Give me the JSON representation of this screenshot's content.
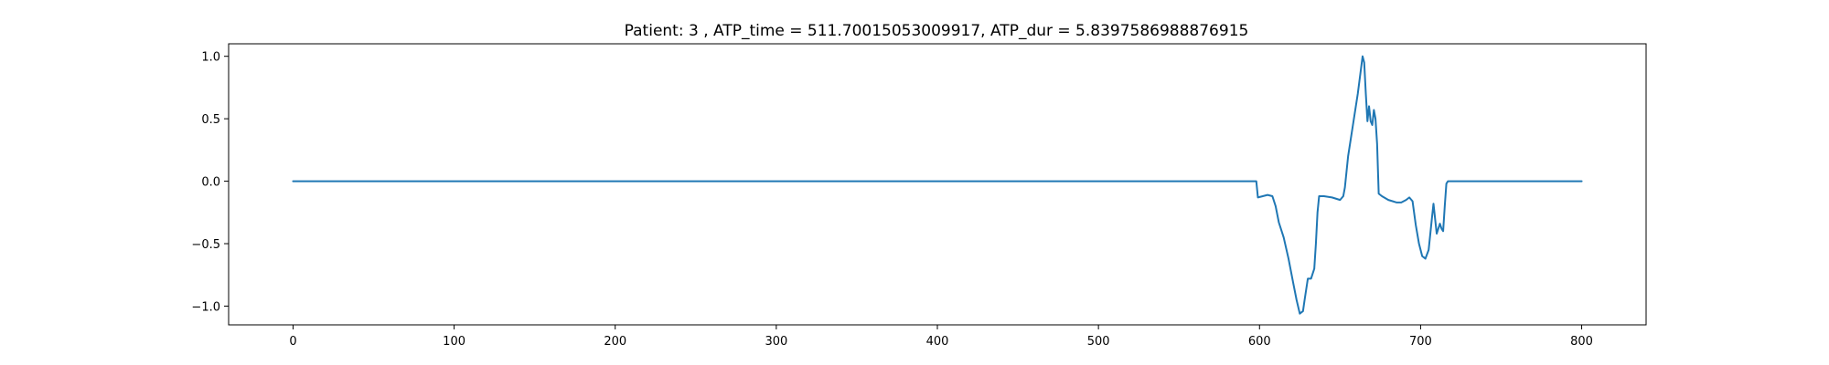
{
  "chart_data": {
    "type": "line",
    "title": "Patient: 3 , ATP_time = 511.70015053009917, ATP_dur = 5.8397586988876915",
    "xlabel": "",
    "ylabel": "",
    "xlim": [
      -40,
      840
    ],
    "ylim": [
      -1.15,
      1.1
    ],
    "xticks": [
      0,
      100,
      200,
      300,
      400,
      500,
      600,
      700,
      800
    ],
    "yticks": [
      1.0,
      0.5,
      0.0,
      -0.5,
      -1.0
    ],
    "xtick_labels": [
      "0",
      "100",
      "200",
      "300",
      "400",
      "500",
      "600",
      "700",
      "800"
    ],
    "ytick_labels": [
      "1.0",
      "0.5",
      "0.0",
      "−0.5",
      "−1.0"
    ],
    "grid": false,
    "legend": "none",
    "series": [
      {
        "color": "#1f77b4",
        "points": [
          [
            0,
            0.0
          ],
          [
            598,
            0.0
          ],
          [
            599,
            -0.13
          ],
          [
            602,
            -0.12
          ],
          [
            605,
            -0.11
          ],
          [
            608,
            -0.12
          ],
          [
            610,
            -0.2
          ],
          [
            612,
            -0.33
          ],
          [
            615,
            -0.45
          ],
          [
            618,
            -0.62
          ],
          [
            621,
            -0.82
          ],
          [
            623,
            -0.95
          ],
          [
            625,
            -1.06
          ],
          [
            627,
            -1.04
          ],
          [
            628,
            -0.95
          ],
          [
            630,
            -0.78
          ],
          [
            632,
            -0.78
          ],
          [
            634,
            -0.7
          ],
          [
            635,
            -0.5
          ],
          [
            636,
            -0.25
          ],
          [
            637,
            -0.12
          ],
          [
            640,
            -0.12
          ],
          [
            645,
            -0.13
          ],
          [
            650,
            -0.15
          ],
          [
            652,
            -0.12
          ],
          [
            653,
            -0.05
          ],
          [
            655,
            0.2
          ],
          [
            658,
            0.45
          ],
          [
            661,
            0.7
          ],
          [
            663,
            0.9
          ],
          [
            664,
            1.0
          ],
          [
            665,
            0.95
          ],
          [
            666,
            0.7
          ],
          [
            667,
            0.48
          ],
          [
            668,
            0.6
          ],
          [
            669,
            0.48
          ],
          [
            670,
            0.45
          ],
          [
            671,
            0.57
          ],
          [
            672,
            0.5
          ],
          [
            673,
            0.3
          ],
          [
            674,
            -0.1
          ],
          [
            676,
            -0.12
          ],
          [
            680,
            -0.15
          ],
          [
            685,
            -0.17
          ],
          [
            688,
            -0.17
          ],
          [
            691,
            -0.15
          ],
          [
            693,
            -0.13
          ],
          [
            695,
            -0.16
          ],
          [
            697,
            -0.35
          ],
          [
            699,
            -0.5
          ],
          [
            701,
            -0.6
          ],
          [
            703,
            -0.62
          ],
          [
            705,
            -0.55
          ],
          [
            707,
            -0.3
          ],
          [
            708,
            -0.18
          ],
          [
            709,
            -0.3
          ],
          [
            710,
            -0.42
          ],
          [
            711,
            -0.38
          ],
          [
            712,
            -0.34
          ],
          [
            713,
            -0.38
          ],
          [
            714,
            -0.4
          ],
          [
            715,
            -0.2
          ],
          [
            716,
            -0.02
          ],
          [
            717,
            0.0
          ],
          [
            720,
            0.0
          ],
          [
            800,
            0.0
          ]
        ]
      }
    ]
  }
}
